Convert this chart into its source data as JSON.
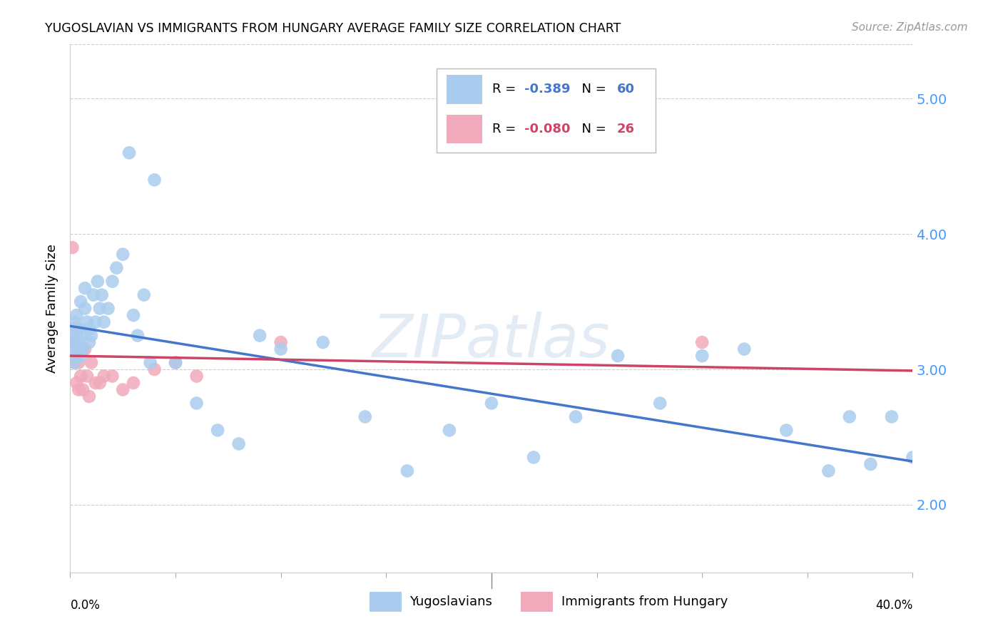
{
  "title": "YUGOSLAVIAN VS IMMIGRANTS FROM HUNGARY AVERAGE FAMILY SIZE CORRELATION CHART",
  "source": "Source: ZipAtlas.com",
  "ylabel": "Average Family Size",
  "yticks": [
    2.0,
    3.0,
    4.0,
    5.0
  ],
  "xlim": [
    0.0,
    0.4
  ],
  "ylim": [
    1.5,
    5.4
  ],
  "legend_labels": [
    "Yugoslavians",
    "Immigrants from Hungary"
  ],
  "color_blue": "#aaccee",
  "color_pink": "#f0aabb",
  "color_blue_line": "#4477cc",
  "color_pink_line": "#cc4466",
  "color_axis_right": "#4499ff",
  "watermark": "ZIPatlas",
  "blue_line_y0": 3.32,
  "blue_line_y1": 2.32,
  "pink_line_y0": 3.1,
  "pink_line_y1": 2.99,
  "blue_x": [
    0.001,
    0.001,
    0.002,
    0.002,
    0.002,
    0.003,
    0.003,
    0.003,
    0.004,
    0.004,
    0.004,
    0.005,
    0.005,
    0.006,
    0.006,
    0.007,
    0.007,
    0.008,
    0.009,
    0.009,
    0.01,
    0.011,
    0.012,
    0.013,
    0.014,
    0.015,
    0.016,
    0.018,
    0.02,
    0.022,
    0.025,
    0.028,
    0.03,
    0.032,
    0.035,
    0.038,
    0.04,
    0.05,
    0.06,
    0.07,
    0.08,
    0.09,
    0.1,
    0.12,
    0.14,
    0.16,
    0.18,
    0.2,
    0.22,
    0.24,
    0.26,
    0.28,
    0.3,
    0.32,
    0.34,
    0.36,
    0.37,
    0.38,
    0.39,
    0.4
  ],
  "blue_y": [
    3.2,
    3.3,
    3.15,
    3.05,
    3.35,
    3.25,
    3.1,
    3.4,
    3.15,
    3.3,
    3.2,
    3.5,
    3.1,
    3.25,
    3.15,
    3.45,
    3.6,
    3.35,
    3.2,
    3.3,
    3.25,
    3.55,
    3.35,
    3.65,
    3.45,
    3.55,
    3.35,
    3.45,
    3.65,
    3.75,
    3.85,
    4.6,
    3.4,
    3.25,
    3.55,
    3.05,
    4.4,
    3.05,
    2.75,
    2.55,
    2.45,
    3.25,
    3.15,
    3.2,
    2.65,
    2.25,
    2.55,
    2.75,
    2.35,
    2.65,
    3.1,
    2.75,
    3.1,
    3.15,
    2.55,
    2.25,
    2.65,
    2.3,
    2.65,
    2.35
  ],
  "pink_x": [
    0.001,
    0.001,
    0.002,
    0.002,
    0.003,
    0.003,
    0.004,
    0.004,
    0.005,
    0.005,
    0.006,
    0.007,
    0.008,
    0.009,
    0.01,
    0.012,
    0.014,
    0.016,
    0.02,
    0.025,
    0.03,
    0.04,
    0.05,
    0.06,
    0.1,
    0.3
  ],
  "pink_y": [
    3.9,
    3.1,
    3.2,
    3.05,
    3.3,
    2.9,
    3.05,
    2.85,
    3.15,
    2.95,
    2.85,
    3.15,
    2.95,
    2.8,
    3.05,
    2.9,
    2.9,
    2.95,
    2.95,
    2.85,
    2.9,
    3.0,
    3.05,
    2.95,
    3.2,
    3.2
  ]
}
